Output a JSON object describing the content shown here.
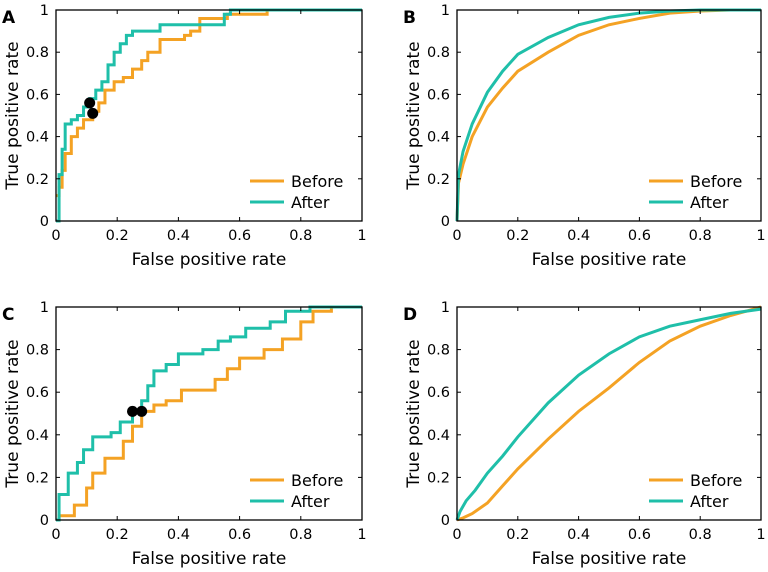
{
  "colors": {
    "before": "#F4A224",
    "after": "#1FBFA9",
    "marker": "#000000"
  },
  "chart_data": [
    {
      "panel": "A",
      "type": "line",
      "xlabel": "False positive rate",
      "ylabel": "True positive rate",
      "xlim": [
        0,
        1
      ],
      "ylim": [
        0,
        1
      ],
      "xticks": [
        "0",
        "0.2",
        "0.4",
        "0.6",
        "0.8",
        "1"
      ],
      "yticks": [
        "0",
        "0.2",
        "0.4",
        "0.6",
        "0.8",
        "1"
      ],
      "legend_position": "bottom-right",
      "series": [
        {
          "name": "Before",
          "color_key": "before",
          "step": true,
          "x": [
            0,
            0.01,
            0.01,
            0.02,
            0.02,
            0.03,
            0.03,
            0.05,
            0.05,
            0.07,
            0.07,
            0.09,
            0.09,
            0.12,
            0.12,
            0.14,
            0.14,
            0.16,
            0.16,
            0.19,
            0.19,
            0.22,
            0.22,
            0.25,
            0.25,
            0.28,
            0.28,
            0.3,
            0.3,
            0.34,
            0.34,
            0.42,
            0.42,
            0.44,
            0.44,
            0.47,
            0.47,
            0.56,
            0.56,
            0.69,
            0.69,
            1.0
          ],
          "y": [
            0.12,
            0.12,
            0.16,
            0.16,
            0.24,
            0.24,
            0.32,
            0.32,
            0.4,
            0.4,
            0.44,
            0.44,
            0.48,
            0.48,
            0.52,
            0.52,
            0.56,
            0.56,
            0.62,
            0.62,
            0.66,
            0.66,
            0.68,
            0.68,
            0.72,
            0.72,
            0.76,
            0.76,
            0.8,
            0.8,
            0.86,
            0.86,
            0.88,
            0.88,
            0.9,
            0.9,
            0.96,
            0.96,
            0.98,
            0.98,
            1.0,
            1.0
          ]
        },
        {
          "name": "After",
          "color_key": "after",
          "step": true,
          "x": [
            0,
            0.01,
            0.01,
            0.02,
            0.02,
            0.03,
            0.03,
            0.05,
            0.05,
            0.07,
            0.07,
            0.09,
            0.09,
            0.11,
            0.11,
            0.13,
            0.13,
            0.15,
            0.15,
            0.17,
            0.17,
            0.19,
            0.19,
            0.21,
            0.21,
            0.23,
            0.23,
            0.25,
            0.25,
            0.34,
            0.34,
            0.55,
            0.55,
            0.57,
            0.57,
            1.0
          ],
          "y": [
            0.0,
            0.0,
            0.22,
            0.22,
            0.34,
            0.34,
            0.46,
            0.46,
            0.48,
            0.48,
            0.5,
            0.5,
            0.54,
            0.54,
            0.58,
            0.58,
            0.62,
            0.62,
            0.66,
            0.66,
            0.74,
            0.74,
            0.8,
            0.8,
            0.84,
            0.84,
            0.88,
            0.88,
            0.9,
            0.9,
            0.93,
            0.93,
            0.98,
            0.98,
            1.0,
            1.0
          ]
        }
      ],
      "markers": [
        {
          "x": 0.11,
          "y": 0.56
        },
        {
          "x": 0.12,
          "y": 0.51
        }
      ]
    },
    {
      "panel": "B",
      "type": "line",
      "xlabel": "False positive rate",
      "ylabel": "True positive rate",
      "xlim": [
        0,
        1
      ],
      "ylim": [
        0,
        1
      ],
      "xticks": [
        "0",
        "0.2",
        "0.4",
        "0.6",
        "0.8",
        "1"
      ],
      "yticks": [
        "0",
        "0.2",
        "0.4",
        "0.6",
        "0.8",
        "1"
      ],
      "legend_position": "bottom-right",
      "series": [
        {
          "name": "Before",
          "color_key": "before",
          "step": false,
          "x": [
            0,
            0.005,
            0.02,
            0.05,
            0.1,
            0.15,
            0.2,
            0.3,
            0.4,
            0.5,
            0.6,
            0.7,
            0.8,
            0.9,
            1.0
          ],
          "y": [
            0,
            0.18,
            0.27,
            0.4,
            0.54,
            0.63,
            0.71,
            0.8,
            0.88,
            0.93,
            0.96,
            0.985,
            0.995,
            1.0,
            1.0
          ]
        },
        {
          "name": "After",
          "color_key": "after",
          "step": false,
          "x": [
            0,
            0.005,
            0.02,
            0.05,
            0.1,
            0.15,
            0.2,
            0.3,
            0.4,
            0.5,
            0.6,
            0.7,
            0.8,
            0.9,
            1.0
          ],
          "y": [
            0,
            0.22,
            0.33,
            0.46,
            0.61,
            0.71,
            0.79,
            0.87,
            0.93,
            0.965,
            0.985,
            0.995,
            1.0,
            1.0,
            1.0
          ]
        }
      ],
      "markers": []
    },
    {
      "panel": "C",
      "type": "line",
      "xlabel": "False positive rate",
      "ylabel": "True positive rate",
      "xlim": [
        0,
        1
      ],
      "ylim": [
        0,
        1
      ],
      "xticks": [
        "0",
        "0.2",
        "0.4",
        "0.6",
        "0.8",
        "1"
      ],
      "yticks": [
        "0",
        "0.2",
        "0.4",
        "0.6",
        "0.8",
        "1"
      ],
      "legend_position": "bottom-right",
      "series": [
        {
          "name": "Before",
          "color_key": "before",
          "step": true,
          "x": [
            0,
            0.01,
            0.01,
            0.06,
            0.06,
            0.1,
            0.1,
            0.12,
            0.12,
            0.16,
            0.16,
            0.22,
            0.22,
            0.25,
            0.25,
            0.28,
            0.28,
            0.32,
            0.32,
            0.36,
            0.36,
            0.41,
            0.41,
            0.52,
            0.52,
            0.56,
            0.56,
            0.6,
            0.6,
            0.68,
            0.68,
            0.74,
            0.74,
            0.8,
            0.8,
            0.84,
            0.84,
            0.9,
            0.9,
            1.0
          ],
          "y": [
            0,
            0,
            0.02,
            0.02,
            0.07,
            0.07,
            0.15,
            0.15,
            0.22,
            0.22,
            0.29,
            0.29,
            0.37,
            0.37,
            0.44,
            0.44,
            0.51,
            0.51,
            0.54,
            0.54,
            0.56,
            0.56,
            0.61,
            0.61,
            0.66,
            0.66,
            0.71,
            0.71,
            0.76,
            0.76,
            0.8,
            0.8,
            0.85,
            0.85,
            0.93,
            0.93,
            0.98,
            0.98,
            1.0,
            1.0
          ]
        },
        {
          "name": "After",
          "color_key": "after",
          "step": true,
          "x": [
            0,
            0.01,
            0.01,
            0.04,
            0.04,
            0.07,
            0.07,
            0.09,
            0.09,
            0.12,
            0.12,
            0.18,
            0.18,
            0.21,
            0.21,
            0.25,
            0.25,
            0.28,
            0.28,
            0.3,
            0.3,
            0.32,
            0.32,
            0.36,
            0.36,
            0.4,
            0.4,
            0.48,
            0.48,
            0.53,
            0.53,
            0.57,
            0.57,
            0.62,
            0.62,
            0.7,
            0.7,
            0.75,
            0.75,
            0.83,
            0.83,
            1.0
          ],
          "y": [
            0.0,
            0.0,
            0.12,
            0.12,
            0.22,
            0.22,
            0.27,
            0.27,
            0.33,
            0.33,
            0.39,
            0.39,
            0.41,
            0.41,
            0.46,
            0.46,
            0.51,
            0.51,
            0.56,
            0.56,
            0.63,
            0.63,
            0.7,
            0.7,
            0.73,
            0.73,
            0.78,
            0.78,
            0.8,
            0.8,
            0.84,
            0.84,
            0.86,
            0.86,
            0.9,
            0.9,
            0.93,
            0.93,
            0.98,
            0.98,
            1.0,
            1.0
          ]
        }
      ],
      "markers": [
        {
          "x": 0.25,
          "y": 0.51
        },
        {
          "x": 0.28,
          "y": 0.51
        }
      ]
    },
    {
      "panel": "D",
      "type": "line",
      "xlabel": "False positive rate",
      "ylabel": "True positive rate",
      "xlim": [
        0,
        1
      ],
      "ylim": [
        0,
        1
      ],
      "xticks": [
        "0",
        "0.2",
        "0.4",
        "0.6",
        "0.8",
        "1"
      ],
      "yticks": [
        "0",
        "0.2",
        "0.4",
        "0.6",
        "0.8",
        "1"
      ],
      "legend_position": "bottom-right",
      "series": [
        {
          "name": "Before",
          "color_key": "before",
          "step": false,
          "x": [
            0,
            0.02,
            0.05,
            0.1,
            0.15,
            0.2,
            0.3,
            0.4,
            0.5,
            0.6,
            0.7,
            0.8,
            0.9,
            0.95,
            1.0
          ],
          "y": [
            0,
            0.01,
            0.03,
            0.08,
            0.16,
            0.24,
            0.38,
            0.51,
            0.62,
            0.74,
            0.84,
            0.91,
            0.96,
            0.98,
            1.0
          ]
        },
        {
          "name": "After",
          "color_key": "after",
          "step": false,
          "x": [
            0,
            0.01,
            0.03,
            0.06,
            0.1,
            0.15,
            0.2,
            0.3,
            0.4,
            0.5,
            0.6,
            0.7,
            0.8,
            0.9,
            1.0
          ],
          "y": [
            0,
            0.04,
            0.09,
            0.14,
            0.22,
            0.3,
            0.39,
            0.55,
            0.68,
            0.78,
            0.86,
            0.91,
            0.94,
            0.97,
            0.99
          ]
        }
      ],
      "markers": []
    }
  ]
}
